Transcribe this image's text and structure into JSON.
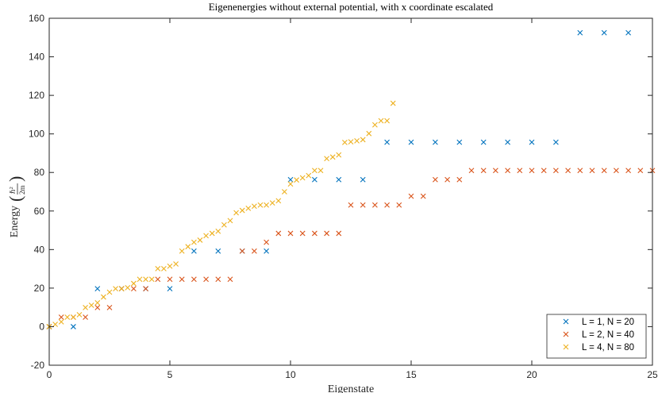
{
  "chart_data": {
    "type": "scatter",
    "title": "Eigenenergies without external potential, with x coordinate escalated",
    "xlabel": "Eigenstate",
    "ylabel": "Energy",
    "ylabel_formula": {
      "numerator": "ℏ",
      "numerator_sup": "2",
      "denominator": "2m"
    },
    "xlim": [
      0,
      25
    ],
    "ylim": [
      -20,
      160
    ],
    "xticks": [
      0,
      5,
      10,
      15,
      20,
      25
    ],
    "yticks": [
      -20,
      0,
      20,
      40,
      60,
      80,
      100,
      120,
      140,
      160
    ],
    "marker": "x",
    "grid": false,
    "legend_position": "bottom-right",
    "series": [
      {
        "name": "L = 1, N = 20",
        "color": "#0072BD",
        "step": 1,
        "y": [
          0.0,
          0.0,
          19.7,
          19.7,
          19.7,
          19.7,
          39.2,
          39.2,
          39.2,
          39.2,
          76.3,
          76.3,
          76.3,
          76.3,
          95.7,
          95.7,
          95.7,
          95.7,
          95.7,
          95.7,
          95.7,
          95.7,
          152.5,
          152.5,
          152.5
        ]
      },
      {
        "name": "L = 2, N = 40",
        "color": "#D95319",
        "step": 0.5,
        "y": [
          0.0,
          4.9,
          4.9,
          4.9,
          9.9,
          9.9,
          19.7,
          19.7,
          19.7,
          24.6,
          24.6,
          24.6,
          24.6,
          24.6,
          24.6,
          24.6,
          39.2,
          39.2,
          43.8,
          48.4,
          48.4,
          48.4,
          48.4,
          48.4,
          48.4,
          63.1,
          63.1,
          63.1,
          63.1,
          63.1,
          67.7,
          67.7,
          76.3,
          76.3,
          76.3,
          81.0,
          81.0,
          81.0,
          81.0,
          81.0,
          81.0,
          81.0,
          81.0,
          81.0,
          81.0,
          81.0,
          81.0,
          81.0,
          81.0,
          81.0,
          81.0,
          81.0,
          81.0,
          81.0,
          81.0,
          81.0,
          81.0,
          81.0,
          81.0,
          81.0
        ]
      },
      {
        "name": "L = 4, N = 80",
        "color": "#EDB120",
        "step": 0.25,
        "y": [
          0.0,
          1.2,
          2.5,
          4.9,
          4.9,
          6.2,
          9.9,
          11.1,
          12.4,
          15.4,
          17.9,
          19.7,
          19.7,
          20.2,
          22.4,
          24.6,
          24.6,
          24.6,
          30.1,
          30.1,
          31.4,
          32.5,
          39.2,
          41.5,
          43.8,
          44.9,
          47.2,
          48.4,
          49.5,
          52.8,
          55.0,
          59.1,
          60.3,
          61.4,
          62.5,
          63.1,
          63.1,
          64.2,
          65.3,
          70.0,
          74.0,
          76.1,
          77.2,
          78.4,
          81.0,
          81.0,
          87.2,
          88.0,
          89.1,
          95.6,
          95.9,
          96.4,
          97.0,
          100.2,
          104.7,
          106.8,
          106.8,
          115.9
        ]
      }
    ]
  }
}
